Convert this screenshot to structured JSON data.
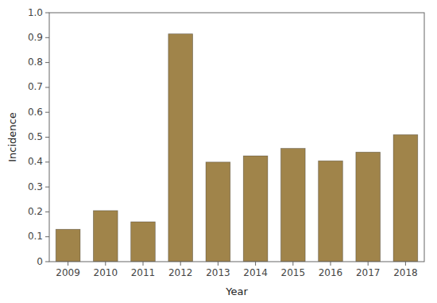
{
  "chart_data": {
    "type": "bar",
    "categories": [
      "2009",
      "2010",
      "2011",
      "2012",
      "2013",
      "2014",
      "2015",
      "2016",
      "2017",
      "2018"
    ],
    "values": [
      0.13,
      0.205,
      0.16,
      0.915,
      0.4,
      0.425,
      0.455,
      0.405,
      0.44,
      0.51
    ],
    "color": "#A0844A",
    "xlabel": "Year",
    "ylabel": "Incidence",
    "ylim": [
      0,
      1.0
    ],
    "yticks": [
      0,
      0.1,
      0.2,
      0.3,
      0.4,
      0.5,
      0.6,
      0.7,
      0.8,
      0.9,
      {
        "value": 1.0,
        "label": "1.0"
      }
    ],
    "grid": false
  }
}
